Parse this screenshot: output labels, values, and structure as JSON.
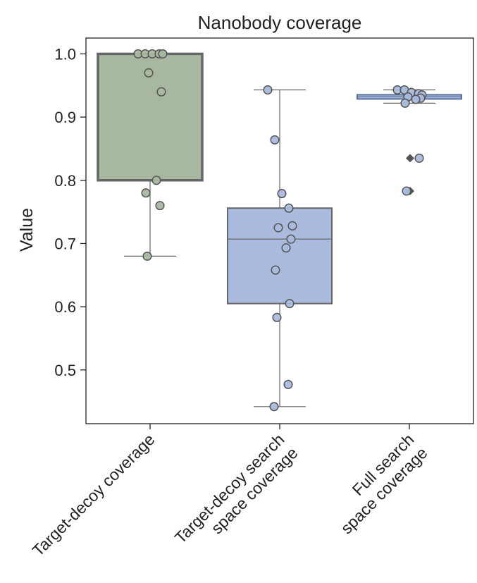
{
  "chart_data": {
    "type": "box",
    "title": "Nanobody coverage",
    "xlabel": "",
    "ylabel": "Value",
    "ylim": [
      0.415,
      1.025
    ],
    "yticks": [
      "0.5",
      "0.6",
      "0.7",
      "0.8",
      "0.9",
      "1.0"
    ],
    "categories": [
      [
        "Target-decoy coverage"
      ],
      [
        "Target-decoy search",
        "space coverage"
      ],
      [
        "Full search",
        "space coverage"
      ]
    ],
    "boxes": [
      {
        "q1": 0.8,
        "median": 1.0,
        "q3": 1.0,
        "whisker_low": 0.68,
        "whisker_high": 1.0,
        "fill": "#a8b8a0",
        "edge": "#666666",
        "points": [
          1.0,
          1.0,
          1.0,
          1.0,
          1.0,
          0.97,
          0.94,
          0.8,
          0.78,
          0.76,
          0.68
        ]
      },
      {
        "q1": 0.605,
        "median": 0.707,
        "q3": 0.756,
        "whisker_low": 0.442,
        "whisker_high": 0.943,
        "fill": "#aabbdd",
        "edge": "#666666",
        "points": [
          0.943,
          0.864,
          0.779,
          0.756,
          0.728,
          0.725,
          0.707,
          0.693,
          0.658,
          0.605,
          0.583,
          0.477,
          0.442
        ]
      },
      {
        "q1": 0.929,
        "median": 0.932,
        "q3": 0.935,
        "whisker_low": 0.922,
        "whisker_high": 0.943,
        "fill": "#aabbdd",
        "edge": "#5a7099",
        "points": [
          0.943,
          0.943,
          0.939,
          0.937,
          0.935,
          0.932,
          0.93,
          0.928,
          0.922,
          0.835,
          0.783
        ],
        "outliers": [
          0.835,
          0.783
        ]
      }
    ],
    "colors": {
      "axis": "#222222",
      "point_edge": "#555555",
      "green": "#a8b8a0",
      "blue": "#aabbdd"
    }
  }
}
